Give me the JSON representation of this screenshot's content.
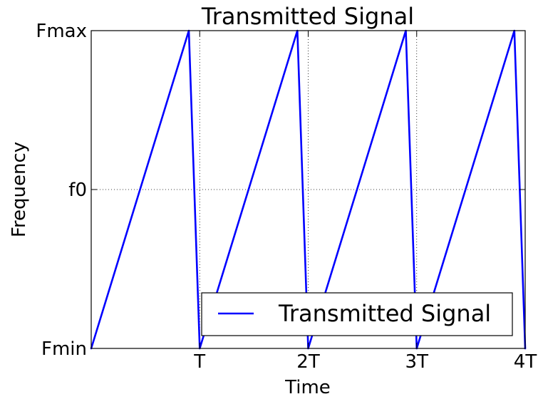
{
  "chart_data": {
    "type": "line",
    "title": "Transmitted Signal",
    "xlabel": "Time",
    "ylabel": "Frequency",
    "xlim": [
      0,
      4
    ],
    "ylim": [
      0,
      1
    ],
    "xticks": [
      {
        "value": 1,
        "label": "T"
      },
      {
        "value": 2,
        "label": "2T"
      },
      {
        "value": 3,
        "label": "3T"
      },
      {
        "value": 4,
        "label": "4T"
      }
    ],
    "yticks": [
      {
        "value": 0,
        "label": "Fmin"
      },
      {
        "value": 0.5,
        "label": "f0"
      },
      {
        "value": 1,
        "label": "Fmax"
      }
    ],
    "grid": "dotted",
    "legend": {
      "placement": "lower-right"
    },
    "series": [
      {
        "name": "Transmitted Signal",
        "color": "#0000ff",
        "x": [
          0,
          0.9,
          1.0,
          1.9,
          2.0,
          2.9,
          3.0,
          3.9,
          4.0
        ],
        "y": [
          0,
          1,
          0,
          1,
          0,
          1,
          0,
          1,
          0
        ]
      }
    ]
  }
}
